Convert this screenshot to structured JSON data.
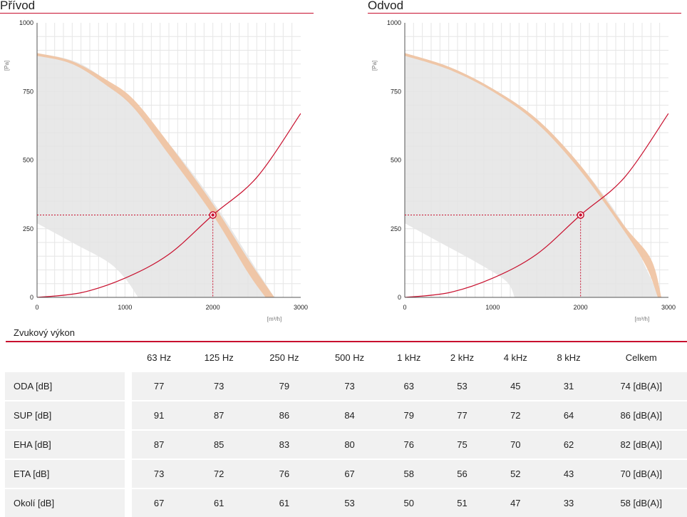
{
  "colors": {
    "accent": "#c8102e",
    "band": "#f0c2a0",
    "region": "#e4e4e4"
  },
  "charts": {
    "left_title": "Přívod",
    "right_title": "Odvod"
  },
  "chart_data": [
    {
      "type": "line",
      "title": "Přívod",
      "xlabel": "[m³/h]",
      "ylabel": "[Pa]",
      "xlim": [
        0,
        3000
      ],
      "ylim": [
        0,
        1000
      ],
      "x_ticks": [
        "0",
        "1000",
        "2000",
        "3000"
      ],
      "y_ticks": [
        "0",
        "250",
        "500",
        "750",
        "1000"
      ],
      "grid": true,
      "region_upper": [
        [
          0,
          890
        ],
        [
          500,
          850
        ],
        [
          1000,
          730
        ],
        [
          1500,
          560
        ],
        [
          2000,
          350
        ],
        [
          2500,
          100
        ],
        [
          2700,
          0
        ]
      ],
      "region_lower": [
        [
          0,
          270
        ],
        [
          400,
          200
        ],
        [
          800,
          130
        ],
        [
          1000,
          70
        ],
        [
          1150,
          0
        ]
      ],
      "band_upper": [
        [
          0,
          890
        ],
        [
          400,
          860
        ],
        [
          800,
          790
        ],
        [
          1100,
          720
        ],
        [
          1500,
          560
        ],
        [
          2000,
          340
        ],
        [
          2400,
          140
        ],
        [
          2700,
          0
        ]
      ],
      "band_lower": [
        [
          0,
          880
        ],
        [
          400,
          850
        ],
        [
          800,
          770
        ],
        [
          1100,
          690
        ],
        [
          1500,
          520
        ],
        [
          2000,
          300
        ],
        [
          2400,
          90
        ],
        [
          2600,
          0
        ]
      ],
      "system_curve": [
        [
          0,
          0
        ],
        [
          500,
          17
        ],
        [
          1000,
          70
        ],
        [
          1500,
          157
        ],
        [
          2000,
          300
        ],
        [
          2500,
          437
        ],
        [
          3000,
          670
        ]
      ],
      "operating_point": {
        "x": 2000,
        "y": 300
      }
    },
    {
      "type": "line",
      "title": "Odvod",
      "xlabel": "[m³/h]",
      "ylabel": "[Pa]",
      "xlim": [
        0,
        3000
      ],
      "ylim": [
        0,
        1000
      ],
      "x_ticks": [
        "0",
        "1000",
        "2000",
        "3000"
      ],
      "y_ticks": [
        "0",
        "250",
        "500",
        "750",
        "1000"
      ],
      "grid": true,
      "region_upper": [
        [
          0,
          890
        ],
        [
          500,
          840
        ],
        [
          1000,
          760
        ],
        [
          1500,
          650
        ],
        [
          2000,
          480
        ],
        [
          2500,
          260
        ],
        [
          2900,
          0
        ]
      ],
      "region_lower": [
        [
          0,
          270
        ],
        [
          400,
          200
        ],
        [
          800,
          130
        ],
        [
          1150,
          60
        ],
        [
          1250,
          0
        ]
      ],
      "band_upper": [
        [
          0,
          890
        ],
        [
          500,
          840
        ],
        [
          1000,
          760
        ],
        [
          1500,
          650
        ],
        [
          2000,
          480
        ],
        [
          2500,
          260
        ],
        [
          2800,
          140
        ],
        [
          2920,
          0
        ]
      ],
      "band_lower": [
        [
          0,
          880
        ],
        [
          500,
          830
        ],
        [
          1000,
          750
        ],
        [
          1500,
          635
        ],
        [
          2000,
          460
        ],
        [
          2500,
          240
        ],
        [
          2750,
          110
        ],
        [
          2880,
          0
        ]
      ],
      "system_curve": [
        [
          0,
          0
        ],
        [
          500,
          17
        ],
        [
          1000,
          70
        ],
        [
          1500,
          157
        ],
        [
          2000,
          300
        ],
        [
          2500,
          437
        ],
        [
          3000,
          670
        ]
      ],
      "operating_point": {
        "x": 2000,
        "y": 300
      }
    }
  ],
  "sound": {
    "title": "Zvukový výkon",
    "headers": [
      "63 Hz",
      "125 Hz",
      "250 Hz",
      "500 Hz",
      "1 kHz",
      "2 kHz",
      "4 kHz",
      "8 kHz",
      "Celkem"
    ],
    "rows": [
      {
        "label": "ODA [dB]",
        "values": [
          "77",
          "73",
          "79",
          "73",
          "63",
          "53",
          "45",
          "31",
          "74 [dB(A)]"
        ]
      },
      {
        "label": "SUP [dB]",
        "values": [
          "91",
          "87",
          "86",
          "84",
          "79",
          "77",
          "72",
          "64",
          "86 [dB(A)]"
        ]
      },
      {
        "label": "EHA [dB]",
        "values": [
          "87",
          "85",
          "83",
          "80",
          "76",
          "75",
          "70",
          "62",
          "82 [dB(A)]"
        ]
      },
      {
        "label": "ETA [dB]",
        "values": [
          "73",
          "72",
          "76",
          "67",
          "58",
          "56",
          "52",
          "43",
          "70 [dB(A)]"
        ]
      },
      {
        "label": "Okolí [dB]",
        "values": [
          "67",
          "61",
          "61",
          "53",
          "50",
          "51",
          "47",
          "33",
          "58 [dB(A)]"
        ]
      }
    ]
  }
}
